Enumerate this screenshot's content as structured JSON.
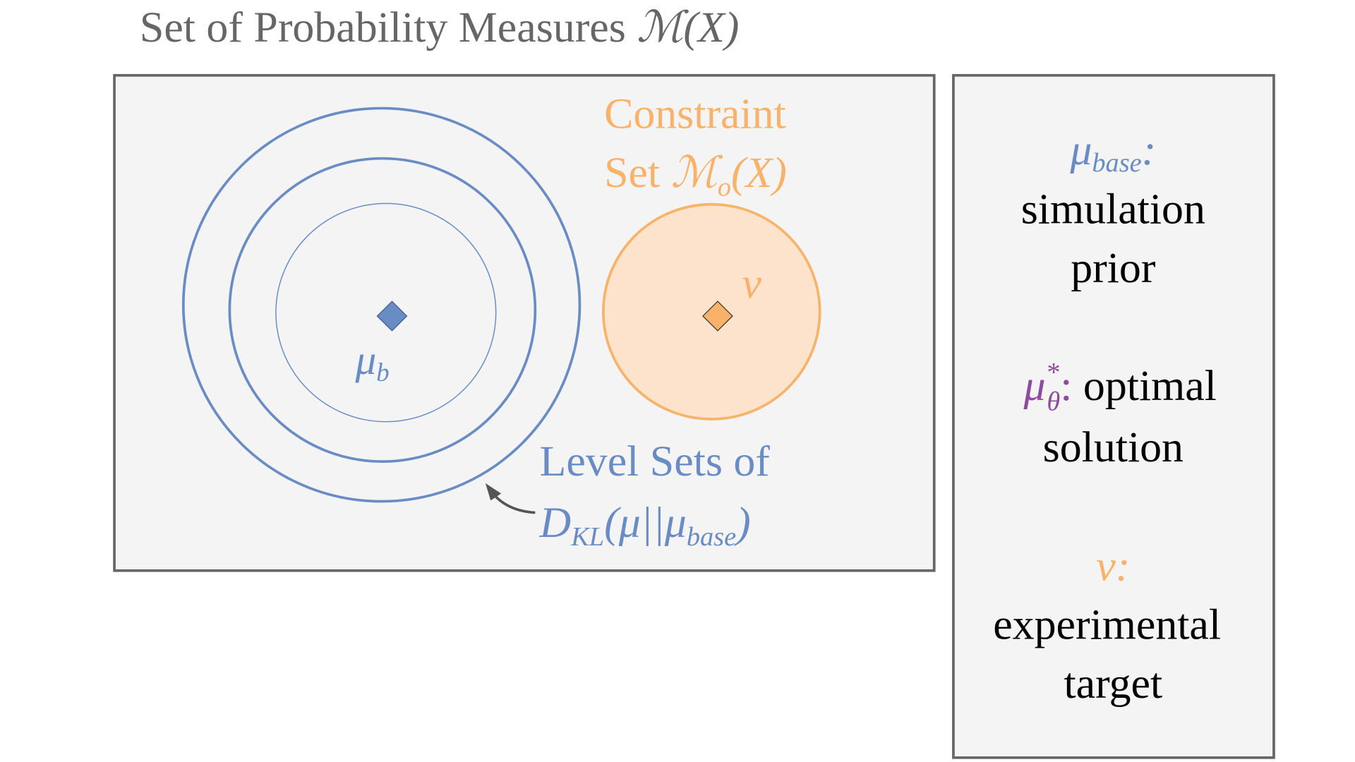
{
  "title": {
    "text": "Set of Probability Measures ",
    "math": "ℳ(X)"
  },
  "diagram": {
    "constraint": {
      "line1": "Constraint",
      "prefix": "Set ",
      "symbol": "ℳ",
      "subscript": "o",
      "suffix": "(X)"
    },
    "target_point": "ν",
    "base_point": {
      "symbol": "μ",
      "subscript": "b"
    },
    "level_sets": {
      "line1": "Level Sets of",
      "symbol": "D",
      "subscript": "KL",
      "middle": "(μ||μ",
      "subscript2": "base",
      "suffix": ")"
    }
  },
  "legend": [
    {
      "symbol": "μ",
      "subscript": "base",
      "colon": ":",
      "lines": [
        "simulation",
        "prior"
      ]
    },
    {
      "symbol": "μ",
      "superscript": "*",
      "subscript": "θ",
      "colon": ":",
      "rest": " optimal",
      "lines": [
        "solution"
      ]
    },
    {
      "symbol": "ν",
      "colon": ":",
      "lines": [
        "experimental",
        "target"
      ]
    }
  ]
}
